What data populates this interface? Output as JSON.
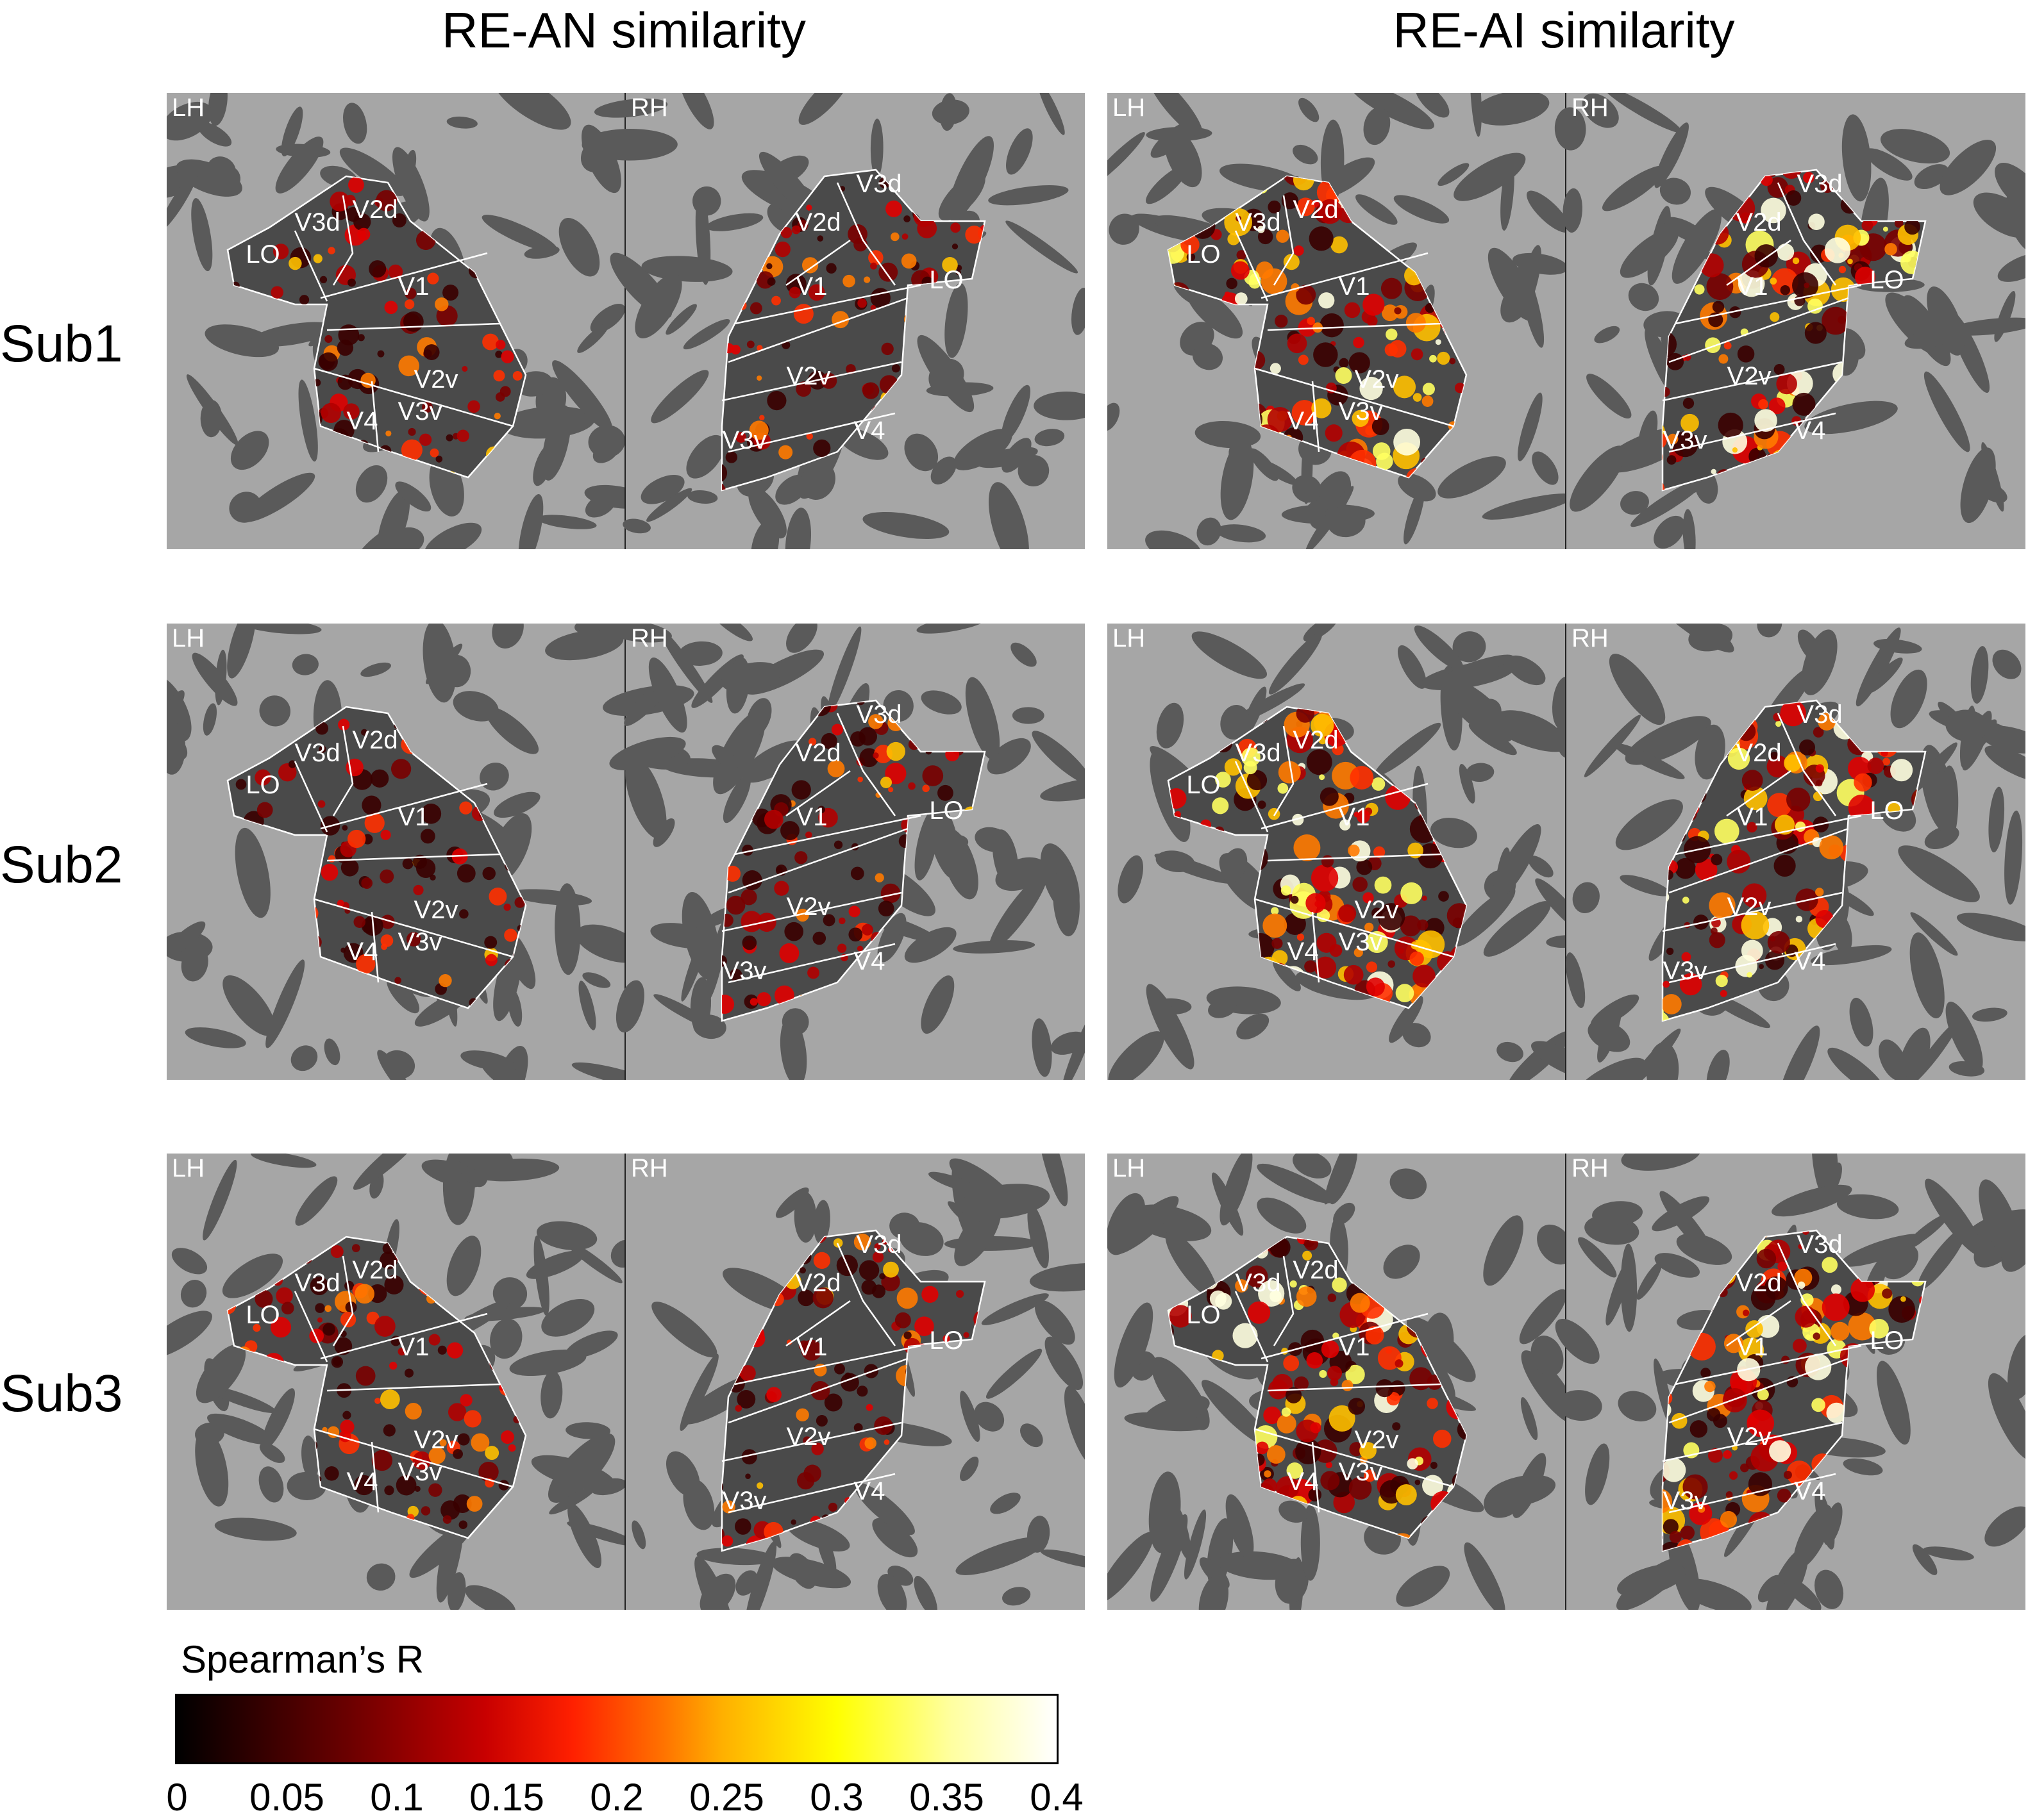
{
  "columns": [
    {
      "title": "RE-AN similarity",
      "intensity": 0.35
    },
    {
      "title": "RE-AI similarity",
      "intensity": 1.0
    }
  ],
  "rows": [
    {
      "label": "Sub1"
    },
    {
      "label": "Sub2"
    },
    {
      "label": "Sub3"
    }
  ],
  "hemispheres": {
    "left": "LH",
    "right": "RH"
  },
  "roi_labels": {
    "lh": [
      "LO",
      "V3d",
      "V2d",
      "V1",
      "V2v",
      "V4",
      "V3v"
    ],
    "rh": [
      "V3d",
      "V2d",
      "V1",
      "LO",
      "V2v",
      "V3v",
      "V4"
    ]
  },
  "colorbar": {
    "title": "Spearman’s R",
    "ticks": [
      "0",
      "0.05",
      "0.1",
      "0.15",
      "0.2",
      "0.25",
      "0.3",
      "0.35",
      "0.4"
    ],
    "min": 0,
    "max": 0.4
  },
  "colors": {
    "cortex_light": "#a6a6a6",
    "cortex_dark": "#5a5a5a",
    "roi_outline": "#ffffff",
    "colormap": "hot"
  }
}
